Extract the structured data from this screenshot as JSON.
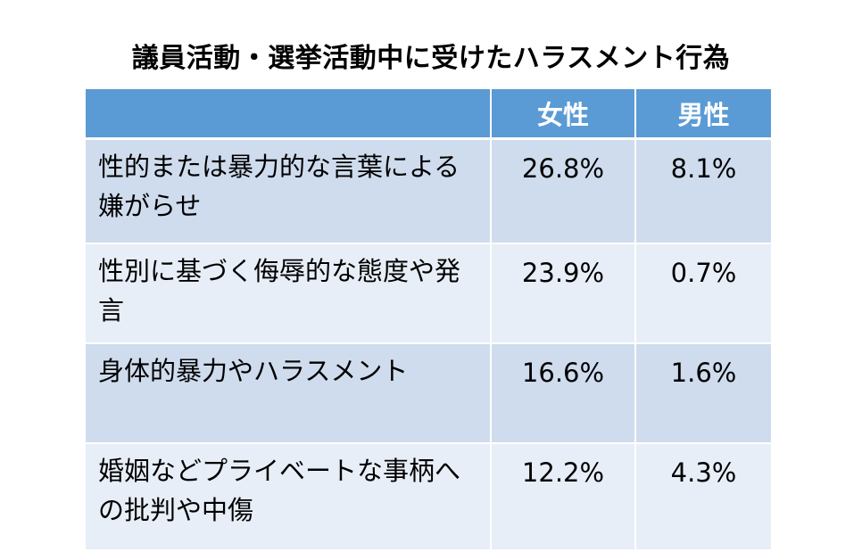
{
  "title": "議員活動・選挙活動中に受けたハラスメント行為",
  "chart_data": {
    "type": "table",
    "title": "議員活動・選挙活動中に受けたハラスメント行為",
    "columns": [
      "",
      "女性",
      "男性"
    ],
    "rows": [
      {
        "label": "性的または暴力的な言葉による嫌がらせ",
        "female": "26.8%",
        "male": "8.1%"
      },
      {
        "label": "性別に基づく侮辱的な態度や発言",
        "female": "23.9%",
        "male": "0.7%"
      },
      {
        "label": "身体的暴力やハラスメント",
        "female": "16.6%",
        "male": "1.6%"
      },
      {
        "label": "婚姻などプライベートな事柄への批判や中傷",
        "female": "12.2%",
        "male": "4.3%"
      }
    ],
    "colors": {
      "header": "#5b9bd5",
      "row_dark": "#cfdcee",
      "row_light": "#e8eef7"
    }
  }
}
